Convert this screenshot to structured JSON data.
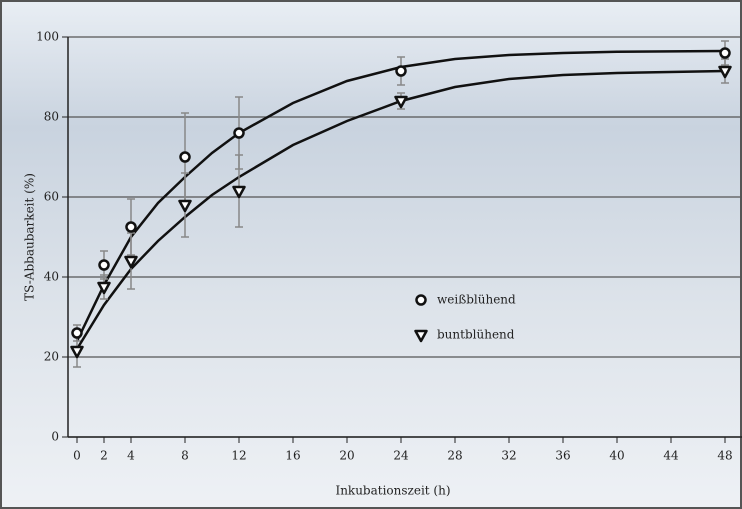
{
  "chart_data": {
    "type": "scatter",
    "xlabel": "Inkubationszeit (h)",
    "ylabel": "TS-Abbaubarkeit (%)",
    "xlim": [
      0,
      48
    ],
    "xticks": [
      0,
      2,
      4,
      8,
      12,
      16,
      20,
      24,
      28,
      32,
      36,
      40,
      44,
      48
    ],
    "ylim": [
      0,
      100
    ],
    "yticks": [
      0,
      20,
      40,
      60,
      80,
      100
    ],
    "grid": true,
    "series": [
      {
        "name": "weißblühend",
        "marker": "circle",
        "color": "#111111",
        "x": [
          0,
          2,
          4,
          8,
          12,
          24,
          48
        ],
        "values": [
          26,
          43,
          52.5,
          70,
          76,
          91.5,
          96
        ],
        "errors": [
          2,
          3.5,
          7,
          11,
          9,
          3.5,
          3
        ],
        "fit_x": [
          0,
          2,
          4,
          6,
          8,
          10,
          12,
          16,
          20,
          24,
          28,
          32,
          36,
          40,
          48
        ],
        "fit_values": [
          24,
          38,
          50,
          58.5,
          65,
          71,
          76,
          83.5,
          89,
          92.5,
          94.5,
          95.5,
          96,
          96.3,
          96.5
        ]
      },
      {
        "name": "buntblühend",
        "marker": "triangle",
        "color": "#111111",
        "x": [
          0,
          2,
          4,
          8,
          12,
          24,
          48
        ],
        "values": [
          21.5,
          37.5,
          44,
          58,
          61.5,
          84,
          91.5
        ],
        "errors": [
          4,
          3,
          7,
          8,
          9,
          2,
          3
        ],
        "fit_x": [
          0,
          2,
          4,
          6,
          8,
          10,
          12,
          16,
          20,
          24,
          28,
          32,
          36,
          40,
          48
        ],
        "fit_values": [
          22,
          33,
          42,
          49,
          55,
          60.5,
          65,
          73,
          79,
          84,
          87.5,
          89.5,
          90.5,
          91,
          91.5
        ]
      }
    ]
  }
}
